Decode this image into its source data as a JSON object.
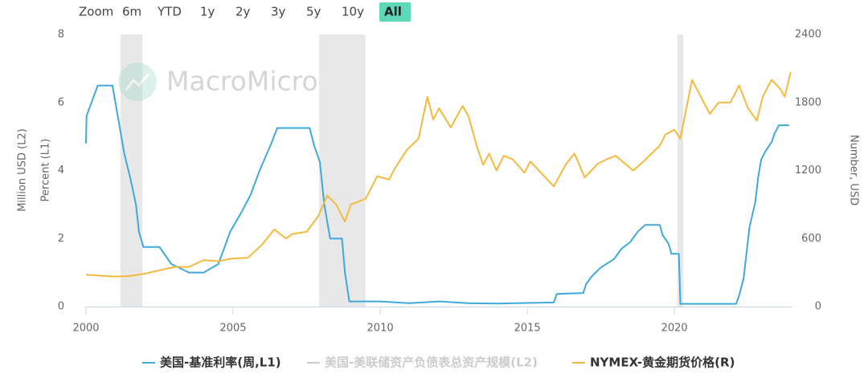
{
  "range_selector": {
    "label": "Zoom",
    "buttons": [
      "6m",
      "YTD",
      "1y",
      "2y",
      "3y",
      "5y",
      "10y",
      "All"
    ],
    "active": "All"
  },
  "chart_data": {
    "type": "line",
    "watermark": "MacroMicro",
    "xlim": [
      2000,
      2024
    ],
    "xticks": [
      2000,
      2005,
      2010,
      2015,
      2020
    ],
    "ylim": [
      0,
      8
    ],
    "yticks": [
      0,
      2,
      4,
      6,
      8
    ],
    "ylabel": "Percent (L1)",
    "y3label": "Million USD (L2)",
    "y2lim": [
      0,
      2400
    ],
    "y2ticks": [
      0,
      600,
      1200,
      1800,
      2400
    ],
    "y2label": "Number, USD",
    "grid": false,
    "recessions": [
      [
        2001.17,
        2001.92
      ],
      [
        2007.92,
        2009.5
      ],
      [
        2020.1,
        2020.3
      ]
    ],
    "recession_color": "#e8e8e8",
    "series": [
      {
        "name": "美国-基准利率(周,L1)",
        "color": "#3fa9dd",
        "axis": "y",
        "visible": true,
        "x": [
          2000.0,
          2000.02,
          2000.1,
          2000.4,
          2000.5,
          2000.9,
          2001.0,
          2001.1,
          2001.3,
          2001.5,
          2001.7,
          2001.8,
          2001.95,
          2002.5,
          2002.9,
          2003.5,
          2004.0,
          2004.5,
          2004.9,
          2005.3,
          2005.6,
          2005.9,
          2006.3,
          2006.5,
          2007.0,
          2007.6,
          2007.75,
          2007.95,
          2008.1,
          2008.3,
          2008.7,
          2008.8,
          2008.95,
          2009.5,
          2010.0,
          2011.0,
          2012.0,
          2013.0,
          2014.0,
          2015.9,
          2016.0,
          2016.9,
          2017.0,
          2017.2,
          2017.5,
          2017.95,
          2018.2,
          2018.5,
          2018.75,
          2019.0,
          2019.5,
          2019.6,
          2019.8,
          2019.9,
          2020.15,
          2020.2,
          2021.0,
          2022.1,
          2022.2,
          2022.35,
          2022.45,
          2022.55,
          2022.75,
          2022.85,
          2022.95,
          2023.1,
          2023.3,
          2023.4,
          2023.55,
          2023.9
        ],
        "values": [
          4.8,
          5.6,
          5.8,
          6.5,
          6.5,
          6.5,
          6.0,
          5.5,
          4.5,
          3.8,
          3.0,
          2.2,
          1.75,
          1.75,
          1.25,
          1.0,
          1.0,
          1.25,
          2.2,
          2.8,
          3.3,
          4.0,
          4.8,
          5.25,
          5.25,
          5.25,
          4.75,
          4.25,
          3.0,
          2.0,
          2.0,
          1.0,
          0.15,
          0.15,
          0.15,
          0.1,
          0.15,
          0.1,
          0.09,
          0.12,
          0.37,
          0.4,
          0.66,
          0.9,
          1.15,
          1.4,
          1.7,
          1.9,
          2.2,
          2.4,
          2.4,
          2.1,
          1.85,
          1.55,
          1.55,
          0.08,
          0.08,
          0.08,
          0.33,
          0.83,
          1.58,
          2.33,
          3.08,
          3.83,
          4.33,
          4.58,
          4.83,
          5.08,
          5.33,
          5.33
        ]
      },
      {
        "name": "美国-美联储资产负债表总资产规模(L2)",
        "color": "#cccccc",
        "axis": "y3",
        "visible": false,
        "x": [],
        "values": []
      },
      {
        "name": "NYMEX-黄金期货价格(R)",
        "color": "#f5b93f",
        "axis": "y2",
        "visible": true,
        "x": [
          2000.0,
          2001.0,
          2001.5,
          2002.0,
          2002.5,
          2003.0,
          2003.5,
          2004.0,
          2004.5,
          2005.0,
          2005.5,
          2006.0,
          2006.4,
          2006.8,
          2007.0,
          2007.5,
          2007.9,
          2008.2,
          2008.5,
          2008.8,
          2009.0,
          2009.5,
          2009.9,
          2010.3,
          2010.5,
          2010.9,
          2011.3,
          2011.6,
          2011.8,
          2012.0,
          2012.4,
          2012.8,
          2013.0,
          2013.3,
          2013.5,
          2013.7,
          2013.95,
          2014.2,
          2014.5,
          2014.9,
          2015.1,
          2015.5,
          2015.9,
          2016.3,
          2016.6,
          2016.95,
          2017.4,
          2017.7,
          2018.0,
          2018.6,
          2018.95,
          2019.5,
          2019.7,
          2020.0,
          2020.2,
          2020.6,
          2020.9,
          2021.2,
          2021.5,
          2021.9,
          2022.2,
          2022.5,
          2022.8,
          2023.0,
          2023.3,
          2023.6,
          2023.75,
          2023.95
        ],
        "values": [
          280,
          265,
          270,
          290,
          320,
          350,
          350,
          410,
          400,
          425,
          430,
          550,
          680,
          600,
          640,
          660,
          800,
          980,
          900,
          750,
          900,
          950,
          1150,
          1120,
          1220,
          1380,
          1480,
          1850,
          1650,
          1750,
          1580,
          1770,
          1680,
          1400,
          1250,
          1350,
          1200,
          1330,
          1300,
          1180,
          1280,
          1170,
          1060,
          1250,
          1350,
          1140,
          1260,
          1300,
          1330,
          1200,
          1280,
          1420,
          1520,
          1560,
          1480,
          2000,
          1850,
          1700,
          1800,
          1800,
          1950,
          1750,
          1640,
          1850,
          2000,
          1920,
          1850,
          2070
        ]
      }
    ]
  }
}
